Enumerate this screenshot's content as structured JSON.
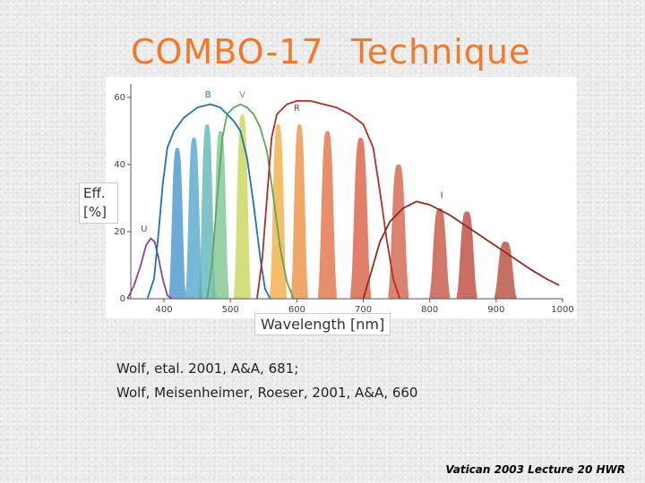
{
  "title": {
    "left": "COMBO-17",
    "right": "Technique"
  },
  "ylabel_line1": "Eff.",
  "ylabel_line2": "[%]",
  "xlabel": "Wavelength [nm]",
  "references": [
    "Wolf, etal. 2001, A&A, 681;",
    "Wolf,  Meisenheimer, Roeser, 2001, A&A, 660"
  ],
  "footer": "Vatican 2003 Lecture 20 HWR",
  "chart_data": {
    "type": "area",
    "xlabel": "Wavelength [nm]",
    "ylabel": "Eff. [%]",
    "xlim": [
      350,
      1000
    ],
    "ylim": [
      0,
      64
    ],
    "xticks": [
      400,
      500,
      600,
      700,
      800,
      900,
      1000
    ],
    "yticks": [
      0,
      20,
      40,
      60
    ],
    "broadband": [
      {
        "name": "U",
        "color": "#8e3f98",
        "label_at": [
          370,
          20
        ],
        "points": [
          [
            345,
            0
          ],
          [
            355,
            4
          ],
          [
            365,
            10
          ],
          [
            373,
            16
          ],
          [
            380,
            18
          ],
          [
            386,
            17
          ],
          [
            392,
            12
          ],
          [
            398,
            6
          ],
          [
            405,
            1
          ],
          [
            412,
            0
          ]
        ]
      },
      {
        "name": "B",
        "color": "#1e74b8",
        "label_at": [
          466,
          60
        ],
        "points": [
          [
            375,
            0
          ],
          [
            385,
            6
          ],
          [
            392,
            20
          ],
          [
            398,
            34
          ],
          [
            405,
            45
          ],
          [
            415,
            50
          ],
          [
            430,
            54
          ],
          [
            450,
            57
          ],
          [
            470,
            58
          ],
          [
            485,
            57
          ],
          [
            495,
            55
          ],
          [
            505,
            53
          ],
          [
            515,
            50
          ],
          [
            525,
            42
          ],
          [
            535,
            28
          ],
          [
            545,
            12
          ],
          [
            552,
            3
          ],
          [
            560,
            0
          ]
        ]
      },
      {
        "name": "V",
        "color": "#5aa85a",
        "label_at": [
          518,
          60
        ],
        "points": [
          [
            465,
            0
          ],
          [
            472,
            10
          ],
          [
            480,
            30
          ],
          [
            488,
            48
          ],
          [
            495,
            55
          ],
          [
            505,
            57
          ],
          [
            515,
            58
          ],
          [
            525,
            57
          ],
          [
            535,
            55
          ],
          [
            545,
            51
          ],
          [
            555,
            44
          ],
          [
            565,
            30
          ],
          [
            575,
            15
          ],
          [
            585,
            5
          ],
          [
            595,
            0
          ]
        ]
      },
      {
        "name": "R",
        "color": "#b03028",
        "label_at": [
          600,
          56
        ],
        "points": [
          [
            540,
            0
          ],
          [
            548,
            12
          ],
          [
            555,
            30
          ],
          [
            562,
            48
          ],
          [
            570,
            55
          ],
          [
            585,
            58
          ],
          [
            600,
            59
          ],
          [
            620,
            59
          ],
          [
            640,
            58
          ],
          [
            660,
            57
          ],
          [
            680,
            55
          ],
          [
            700,
            52
          ],
          [
            715,
            45
          ],
          [
            725,
            32
          ],
          [
            735,
            18
          ],
          [
            745,
            6
          ],
          [
            755,
            0
          ]
        ]
      },
      {
        "name": "I",
        "color": "#8b2e22",
        "label_at": [
          818,
          30
        ],
        "points": [
          [
            700,
            0
          ],
          [
            712,
            8
          ],
          [
            725,
            17
          ],
          [
            740,
            23
          ],
          [
            760,
            27
          ],
          [
            780,
            29
          ],
          [
            800,
            28
          ],
          [
            830,
            25
          ],
          [
            860,
            21
          ],
          [
            890,
            17
          ],
          [
            920,
            13
          ],
          [
            950,
            9
          ],
          [
            975,
            6
          ],
          [
            995,
            4
          ]
        ]
      }
    ],
    "mediumband": [
      {
        "center": 420,
        "width": 18,
        "peak": 45,
        "color": "#3c8ecb"
      },
      {
        "center": 445,
        "width": 18,
        "peak": 48,
        "color": "#4aa0c8"
      },
      {
        "center": 465,
        "width": 18,
        "peak": 52,
        "color": "#56b0b6"
      },
      {
        "center": 485,
        "width": 18,
        "peak": 50,
        "color": "#78c08a"
      },
      {
        "center": 518,
        "width": 18,
        "peak": 55,
        "color": "#c6d450"
      },
      {
        "center": 572,
        "width": 18,
        "peak": 52,
        "color": "#f2a83a"
      },
      {
        "center": 604,
        "width": 18,
        "peak": 52,
        "color": "#ea8a38"
      },
      {
        "center": 646,
        "width": 20,
        "peak": 50,
        "color": "#e2683a"
      },
      {
        "center": 696,
        "width": 22,
        "peak": 48,
        "color": "#d8543a"
      },
      {
        "center": 753,
        "width": 22,
        "peak": 40,
        "color": "#d05a3e"
      },
      {
        "center": 815,
        "width": 22,
        "peak": 27,
        "color": "#c24a38"
      },
      {
        "center": 856,
        "width": 22,
        "peak": 26,
        "color": "#b83e32"
      },
      {
        "center": 914,
        "width": 24,
        "peak": 17,
        "color": "#b0402f"
      }
    ]
  }
}
